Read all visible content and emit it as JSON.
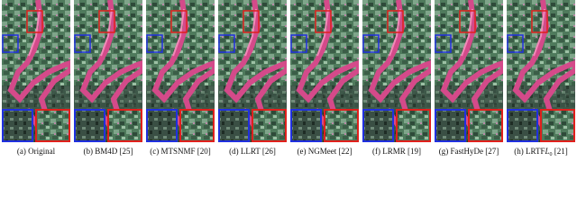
{
  "panels": [
    {
      "label": "(a)",
      "method": "Original"
    },
    {
      "label": "(b)",
      "method": "BM4D",
      "ref": "[25]"
    },
    {
      "label": "(c)",
      "method": "MTSNMF",
      "ref": "[20]"
    },
    {
      "label": "(d)",
      "method": "LLRT",
      "ref": "[26]"
    },
    {
      "label": "(e)",
      "method": "NGMeet",
      "ref": "[22]"
    },
    {
      "label": "(f)",
      "method": "LRMR",
      "ref": "[19]"
    },
    {
      "label": "(g)",
      "method": "FastHyDe",
      "ref": "[27]"
    },
    {
      "label": "(h)",
      "method": "LRTF",
      "math": "L",
      "sub": "0",
      "ref": "[21]"
    }
  ]
}
